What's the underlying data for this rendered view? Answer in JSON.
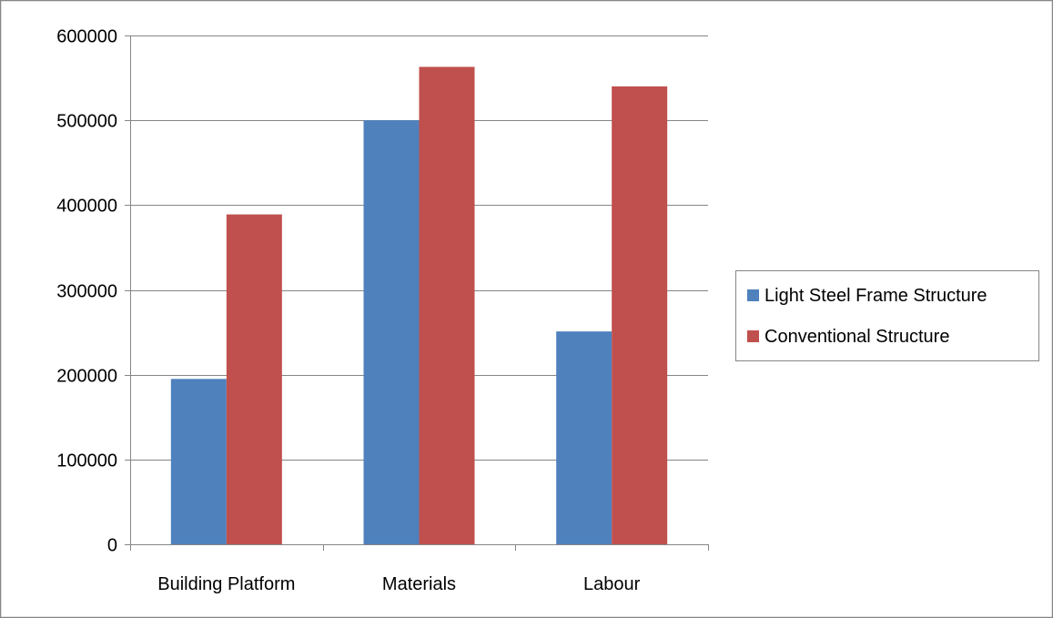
{
  "chart_data": {
    "type": "bar",
    "title": "",
    "xlabel": "",
    "ylabel": "",
    "categories": [
      "Building Platform",
      "Materials",
      "Labour"
    ],
    "series": [
      {
        "name": "Light Steel Frame Structure",
        "color": "#4F81BD",
        "values": [
          195000,
          500000,
          251000
        ]
      },
      {
        "name": "Conventional Structure",
        "color": "#C0504D",
        "values": [
          389000,
          563000,
          540000
        ]
      }
    ],
    "ylim": [
      0,
      600000
    ],
    "yticks": [
      0,
      100000,
      200000,
      300000,
      400000,
      500000,
      600000
    ],
    "ytick_labels": [
      "0",
      "100000",
      "200000",
      "300000",
      "400000",
      "500000",
      "600000"
    ],
    "grid": true,
    "legend_position": "right"
  }
}
